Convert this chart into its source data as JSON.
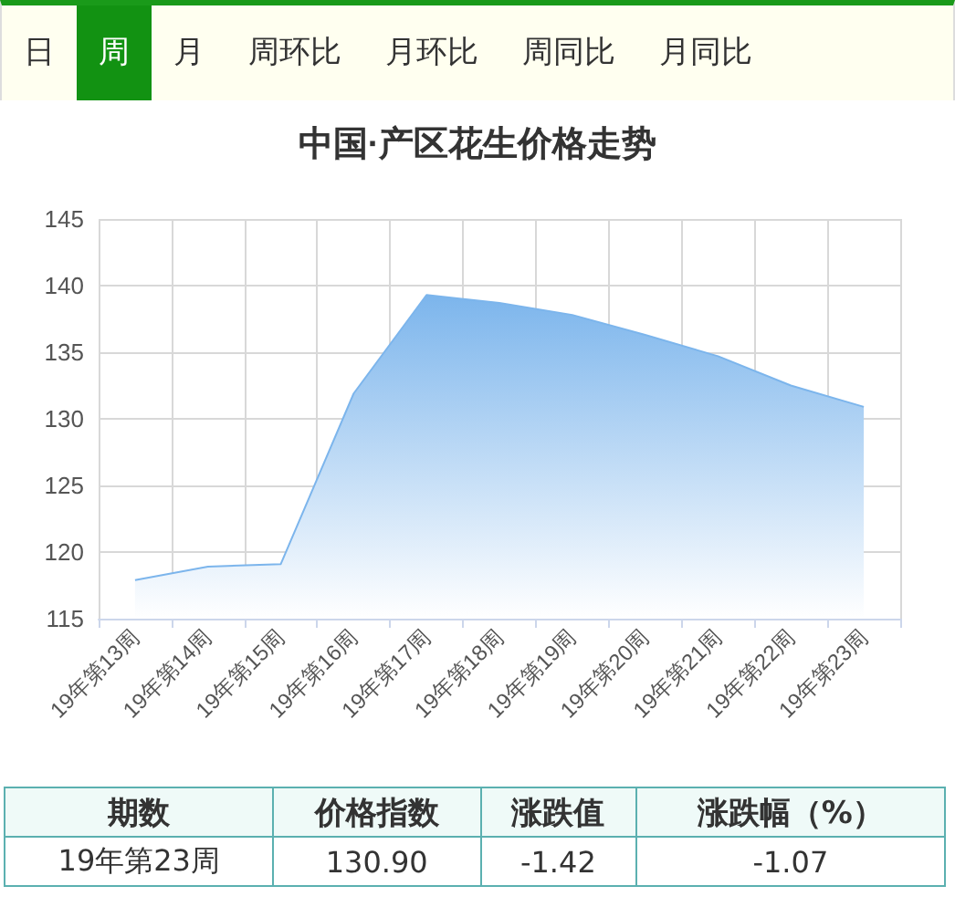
{
  "chart_data": {
    "type": "area",
    "title": "中国·产区花生价格走势",
    "categories": [
      "19年第13周",
      "19年第14周",
      "19年第15周",
      "19年第16周",
      "19年第17周",
      "19年第18周",
      "19年第19周",
      "19年第20周",
      "19年第21周",
      "19年第22周",
      "19年第23周"
    ],
    "series": [
      {
        "color": "#7cb5ec",
        "values": [
          117.9,
          118.9,
          119.1,
          131.9,
          139.3,
          138.7,
          137.8,
          136.3,
          134.7,
          132.5,
          130.9
        ]
      }
    ],
    "ylim": [
      115,
      145
    ],
    "yticks": [
      115,
      120,
      125,
      130,
      135,
      140,
      145
    ],
    "grid": true,
    "marker": "none",
    "annotations": [
      "日",
      "周",
      "月",
      "周环比",
      "月环比",
      "周同比",
      "月同比",
      "期数",
      "价格指数",
      "涨跌值",
      "涨跌幅（%）",
      "19年第23周",
      "130.90",
      "-1.42",
      "-1.07"
    ]
  }
}
